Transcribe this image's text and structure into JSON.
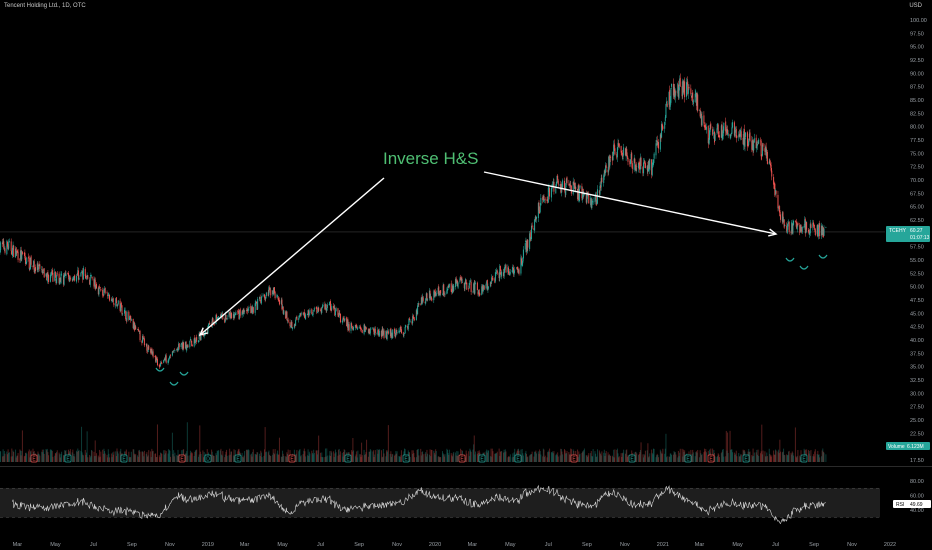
{
  "header": {
    "title": "Tencent Holding Ltd., 1D, OTC",
    "currency": "USD"
  },
  "colors": {
    "up": "#26a69a",
    "down": "#ef5350",
    "rsi_line": "#d9d9d9",
    "rsi_band": "#1e1e1e",
    "annotation": "#4fbf73",
    "arrow": "#ffffff",
    "price_tag": "#26a69a",
    "volume_tag": "#26a69a"
  },
  "price_tag": {
    "symbol": "TCEHY",
    "value": "60.27",
    "time": "01:07:13"
  },
  "volume_tag": {
    "label": "Volume",
    "value": "6.123M"
  },
  "rsi_tag": {
    "label": "RSI",
    "value": "49.69"
  },
  "annotation": {
    "text": "Inverse H&S"
  },
  "event_markers": [
    "E",
    "E",
    "E",
    "E",
    "E",
    "D",
    "E",
    "E",
    "E",
    "E",
    "E",
    "E",
    "E",
    "E",
    "E",
    "E",
    "E",
    "E"
  ],
  "chart_data": [
    {
      "type": "candlestick",
      "title": "Tencent Holding Ltd., 1D, OTC",
      "y_ticks": [
        "100.00",
        "97.50",
        "95.00",
        "92.50",
        "90.00",
        "87.50",
        "85.00",
        "82.50",
        "80.00",
        "77.50",
        "75.00",
        "72.50",
        "70.00",
        "67.50",
        "65.00",
        "62.50",
        "60.00",
        "57.50",
        "55.00",
        "52.50",
        "50.00",
        "47.50",
        "45.00",
        "42.50",
        "40.00",
        "37.50",
        "35.00",
        "32.50",
        "30.00",
        "27.50",
        "25.00",
        "22.50",
        "20.00",
        "17.50"
      ],
      "ylim": [
        17.5,
        100
      ],
      "x_ticks": [
        "Mar",
        "May",
        "Jul",
        "Sep",
        "Nov",
        "2019",
        "Mar",
        "May",
        "Jul",
        "Sep",
        "Nov",
        "2020",
        "Mar",
        "May",
        "Jul",
        "Sep",
        "Nov",
        "2021",
        "Mar",
        "May",
        "Jul",
        "Sep",
        "Nov",
        "2022"
      ],
      "series": [
        {
          "name": "TCEHY",
          "approx_monthly_close": [
            {
              "x": "2018-02",
              "y": 57.5
            },
            {
              "x": "2018-03",
              "y": 55.0
            },
            {
              "x": "2018-04",
              "y": 52.0
            },
            {
              "x": "2018-05",
              "y": 51.5
            },
            {
              "x": "2018-06",
              "y": 52.5
            },
            {
              "x": "2018-07",
              "y": 49.0
            },
            {
              "x": "2018-08",
              "y": 46.0
            },
            {
              "x": "2018-09",
              "y": 40.5
            },
            {
              "x": "2018-10",
              "y": 35.5
            },
            {
              "x": "2018-11",
              "y": 38.5
            },
            {
              "x": "2018-12",
              "y": 40.0
            },
            {
              "x": "2019-01",
              "y": 44.0
            },
            {
              "x": "2019-02",
              "y": 44.5
            },
            {
              "x": "2019-03",
              "y": 46.0
            },
            {
              "x": "2019-04",
              "y": 49.5
            },
            {
              "x": "2019-05",
              "y": 43.0
            },
            {
              "x": "2019-06",
              "y": 45.5
            },
            {
              "x": "2019-07",
              "y": 46.5
            },
            {
              "x": "2019-08",
              "y": 42.5
            },
            {
              "x": "2019-09",
              "y": 42.0
            },
            {
              "x": "2019-10",
              "y": 41.0
            },
            {
              "x": "2019-11",
              "y": 42.0
            },
            {
              "x": "2019-12",
              "y": 48.0
            },
            {
              "x": "2020-01",
              "y": 49.5
            },
            {
              "x": "2020-02",
              "y": 51.0
            },
            {
              "x": "2020-03",
              "y": 49.0
            },
            {
              "x": "2020-04",
              "y": 53.0
            },
            {
              "x": "2020-05",
              "y": 53.5
            },
            {
              "x": "2020-06",
              "y": 64.5
            },
            {
              "x": "2020-07",
              "y": 69.5
            },
            {
              "x": "2020-08",
              "y": 68.0
            },
            {
              "x": "2020-09",
              "y": 66.0
            },
            {
              "x": "2020-10",
              "y": 76.0
            },
            {
              "x": "2020-11",
              "y": 73.0
            },
            {
              "x": "2020-12",
              "y": 72.5
            },
            {
              "x": "2021-01",
              "y": 87.0
            },
            {
              "x": "2021-02",
              "y": 87.5
            },
            {
              "x": "2021-03",
              "y": 78.5
            },
            {
              "x": "2021-04",
              "y": 79.5
            },
            {
              "x": "2021-05",
              "y": 78.0
            },
            {
              "x": "2021-06",
              "y": 75.0
            },
            {
              "x": "2021-07",
              "y": 61.0
            },
            {
              "x": "2021-08",
              "y": 61.5
            },
            {
              "x": "2021-09",
              "y": 60.3
            }
          ]
        }
      ]
    },
    {
      "type": "line",
      "series": [
        {
          "name": "RSI"
        }
      ],
      "y_ticks": [
        "80.00",
        "60.00",
        "40.00"
      ],
      "ylim": [
        10,
        95
      ],
      "bands": [
        30,
        70
      ],
      "last_value": 49.69
    }
  ]
}
